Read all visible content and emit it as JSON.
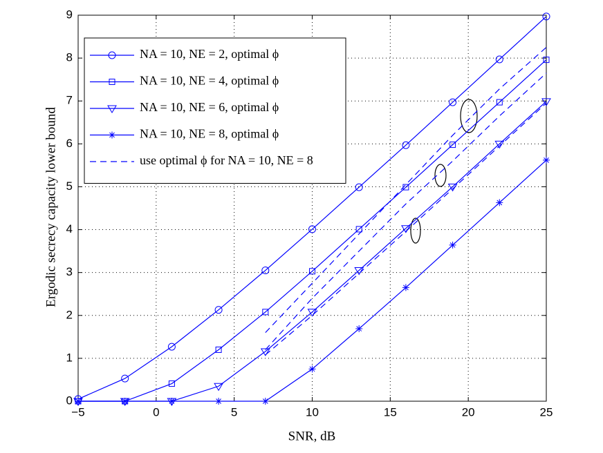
{
  "chart_data": {
    "type": "line",
    "xlabel": "SNR, dB",
    "ylabel": "Ergodic secrecy capacity lower bound",
    "xlim": [
      -5,
      25
    ],
    "ylim": [
      0,
      9
    ],
    "xticks": [
      {
        "value": -5,
        "label": "−5"
      },
      0,
      5,
      10,
      15,
      20,
      25
    ],
    "yticks": [
      0,
      1,
      2,
      3,
      4,
      5,
      6,
      7,
      8,
      9
    ],
    "grid": true,
    "legend": "upper left",
    "series": [
      {
        "name": "NA = 10, NE = 2, optimal ϕ",
        "color": "#0000ff",
        "marker": "circle",
        "dash": false,
        "x": [
          -5,
          -2,
          1,
          4,
          7,
          10,
          13,
          16,
          19,
          22,
          25
        ],
        "values": [
          0.05,
          0.53,
          1.27,
          2.13,
          3.05,
          4.01,
          4.99,
          5.97,
          6.97,
          7.97,
          8.97
        ]
      },
      {
        "name": "NA = 10, NE = 4, optimal ϕ",
        "color": "#0000ff",
        "marker": "square",
        "dash": false,
        "x": [
          -5,
          -2,
          1,
          4,
          7,
          10,
          13,
          16,
          19,
          22,
          25
        ],
        "values": [
          0,
          0,
          0.41,
          1.2,
          2.08,
          3.03,
          4.01,
          4.99,
          5.98,
          6.97,
          7.96
        ]
      },
      {
        "name": "NA = 10, NE = 6, optimal ϕ",
        "color": "#0000ff",
        "marker": "triangle",
        "dash": false,
        "x": [
          -5,
          -2,
          1,
          4,
          7,
          10,
          13,
          16,
          19,
          22,
          25
        ],
        "values": [
          0,
          0,
          0,
          0.35,
          1.16,
          2.08,
          3.05,
          4.03,
          5.0,
          6.0,
          6.99
        ]
      },
      {
        "name": "NA = 10, NE = 8, optimal ϕ",
        "color": "#0000ff",
        "marker": "star",
        "dash": false,
        "x": [
          -5,
          -2,
          1,
          4,
          7,
          10,
          13,
          16,
          19,
          22,
          25
        ],
        "values": [
          0,
          0,
          0,
          0,
          0,
          0.75,
          1.69,
          2.65,
          3.64,
          4.63,
          5.62
        ]
      },
      {
        "name": "use optimal ϕ for NA = 10, NE = 8",
        "color": "#0000ff",
        "dash": true,
        "x": [
          7,
          10,
          13,
          16,
          19,
          22,
          25
        ],
        "values": [
          1.6,
          2.75,
          3.9,
          5.05,
          6.2,
          7.28,
          8.25
        ]
      },
      {
        "color": "#0000ff",
        "dash": true,
        "x": [
          7,
          10,
          13,
          16,
          19,
          22,
          25
        ],
        "values": [
          1.2,
          2.4,
          3.5,
          4.6,
          5.6,
          6.65,
          7.65
        ]
      },
      {
        "color": "#0000ff",
        "dash": true,
        "x": [
          7,
          10,
          13,
          16,
          19,
          22,
          25
        ],
        "values": [
          1.08,
          2.0,
          2.98,
          3.96,
          4.95,
          5.95,
          6.95
        ]
      }
    ]
  }
}
